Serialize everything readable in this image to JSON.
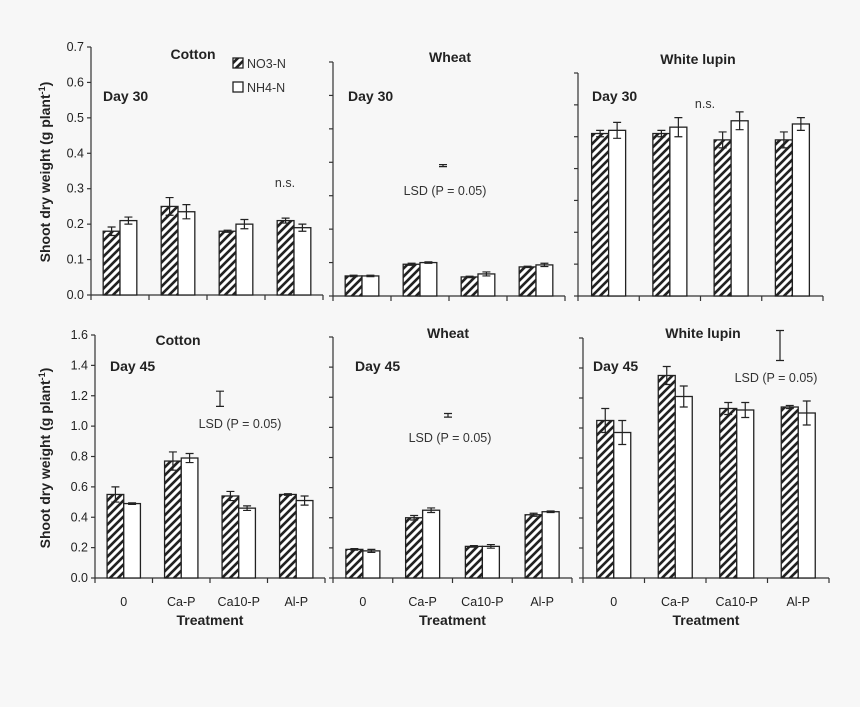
{
  "y_axis_label": "Shoot dry weight (g plant",
  "y_axis_label_sup": "-1",
  "y_axis_label_end": ")",
  "x_axis_label": "Treatment",
  "legend": [
    {
      "name": "NO3-N",
      "fill": "hatched"
    },
    {
      "name": "NH4-N",
      "fill": "white"
    }
  ],
  "chart_data": [
    {
      "type": "bar",
      "title": "Cotton",
      "day": "Day 30",
      "annotation": "n.s.",
      "ylim": [
        0,
        0.7
      ],
      "yticks": [
        "0.0",
        "0.1",
        "0.2",
        "0.3",
        "0.4",
        "0.5",
        "0.6",
        "0.7"
      ],
      "categories": [
        "0",
        "Ca-P",
        "Ca10-P",
        "Al-P"
      ],
      "series": [
        {
          "name": "NO3-N",
          "values": [
            0.18,
            0.25,
            0.18,
            0.21
          ],
          "errors": [
            0.012,
            0.025,
            0.003,
            0.007
          ]
        },
        {
          "name": "NH4-N",
          "values": [
            0.21,
            0.235,
            0.2,
            0.19
          ],
          "errors": [
            0.01,
            0.02,
            0.013,
            0.01
          ]
        }
      ]
    },
    {
      "type": "bar",
      "title": "Wheat",
      "day": "Day 30",
      "annotation": "LSD (P = 0.05)",
      "lsd": {
        "center": 0.39,
        "half": 0.003
      },
      "ylim": [
        0,
        0.7
      ],
      "categories": [
        "0",
        "Ca-P",
        "Ca10-P",
        "Al-P"
      ],
      "series": [
        {
          "name": "NO3-N",
          "values": [
            0.06,
            0.095,
            0.057,
            0.087
          ],
          "errors": [
            0.002,
            0.003,
            0.002,
            0.002
          ]
        },
        {
          "name": "NH4-N",
          "values": [
            0.06,
            0.1,
            0.066,
            0.093
          ],
          "errors": [
            0.002,
            0.002,
            0.006,
            0.005
          ]
        }
      ]
    },
    {
      "type": "bar",
      "title": "White lupin",
      "day": "Day 30",
      "annotation": "n.s.",
      "ylim": [
        0,
        0.7
      ],
      "categories": [
        "0",
        "Ca-P",
        "Ca10-P",
        "Al-P"
      ],
      "series": [
        {
          "name": "NO3-N",
          "values": [
            0.51,
            0.51,
            0.49,
            0.49
          ],
          "errors": [
            0.01,
            0.01,
            0.025,
            0.025
          ]
        },
        {
          "name": "NH4-N",
          "values": [
            0.52,
            0.53,
            0.55,
            0.54
          ],
          "errors": [
            0.025,
            0.03,
            0.028,
            0.02
          ]
        }
      ]
    },
    {
      "type": "bar",
      "title": "Cotton",
      "day": "Day 45",
      "annotation": "LSD (P = 0.05)",
      "lsd": {
        "center": 1.18,
        "half": 0.05
      },
      "ylim": [
        0,
        1.6
      ],
      "yticks": [
        "0.0",
        "0.2",
        "0.4",
        "0.6",
        "0.8",
        "1.0",
        "1.2",
        "1.4",
        "1.6"
      ],
      "categories": [
        "0",
        "Ca-P",
        "Ca10-P",
        "Al-P"
      ],
      "series": [
        {
          "name": "NO3-N",
          "values": [
            0.55,
            0.77,
            0.54,
            0.55
          ],
          "errors": [
            0.05,
            0.06,
            0.03,
            0.005
          ]
        },
        {
          "name": "NH4-N",
          "values": [
            0.49,
            0.79,
            0.46,
            0.51
          ],
          "errors": [
            0.005,
            0.03,
            0.015,
            0.03
          ]
        }
      ]
    },
    {
      "type": "bar",
      "title": "Wheat",
      "day": "Day 45",
      "annotation": "LSD (P = 0.05)",
      "lsd": {
        "center": 1.08,
        "half": 0.012
      },
      "ylim": [
        0,
        1.6
      ],
      "categories": [
        "0",
        "Ca-P",
        "Ca10-P",
        "Al-P"
      ],
      "series": [
        {
          "name": "NO3-N",
          "values": [
            0.19,
            0.4,
            0.21,
            0.42
          ],
          "errors": [
            0.005,
            0.015,
            0.005,
            0.01
          ]
        },
        {
          "name": "NH4-N",
          "values": [
            0.18,
            0.45,
            0.21,
            0.44
          ],
          "errors": [
            0.01,
            0.015,
            0.012,
            0.005
          ]
        }
      ]
    },
    {
      "type": "bar",
      "title": "White lupin",
      "day": "Day 45",
      "annotation": "LSD (P = 0.05)",
      "lsd": {
        "center": 1.55,
        "half": 0.1
      },
      "ylim": [
        0,
        1.6
      ],
      "categories": [
        "0",
        "Ca-P",
        "Ca10-P",
        "Al-P"
      ],
      "series": [
        {
          "name": "NO3-N",
          "values": [
            1.05,
            1.35,
            1.13,
            1.14
          ],
          "errors": [
            0.08,
            0.06,
            0.04,
            0.01
          ]
        },
        {
          "name": "NH4-N",
          "values": [
            0.97,
            1.21,
            1.12,
            1.1
          ],
          "errors": [
            0.08,
            0.07,
            0.05,
            0.08
          ]
        }
      ]
    }
  ]
}
